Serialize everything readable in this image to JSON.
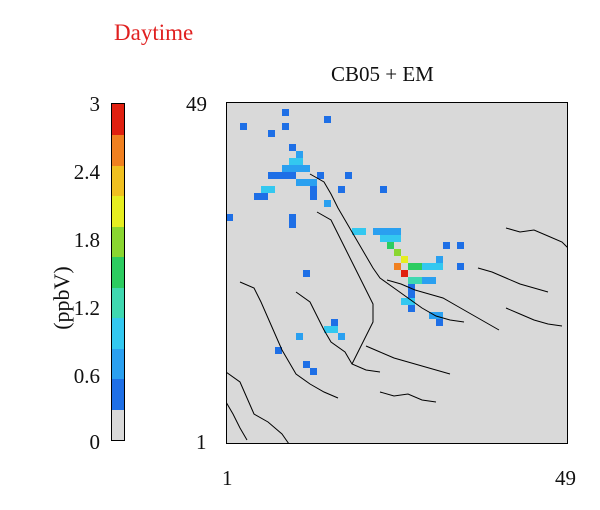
{
  "header": {
    "daytime": "Daytime",
    "title": "CB05 + EM"
  },
  "colorbar": {
    "unit_label": "(ppbV)",
    "ticks": [
      "0",
      "0.6",
      "1.2",
      "1.8",
      "2.4",
      "3"
    ],
    "range": [
      0,
      3
    ],
    "colors": [
      "#d9d9d9",
      "#1e6fe6",
      "#2aa0f0",
      "#33c8f0",
      "#3fd8b0",
      "#2ccc60",
      "#8ad630",
      "#e6ee20",
      "#f0c020",
      "#f08020",
      "#e02010"
    ]
  },
  "grid": {
    "x_ticks": [
      "1",
      "49"
    ],
    "y_ticks": [
      "1",
      "49"
    ],
    "x_range": [
      1,
      49
    ],
    "y_range": [
      1,
      49
    ],
    "background": "#d9d9d9"
  }
}
